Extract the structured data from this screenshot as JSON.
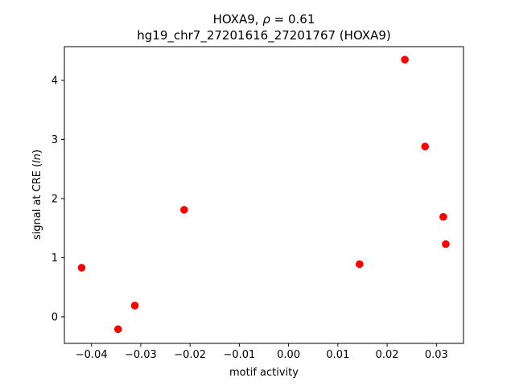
{
  "chart_data": {
    "type": "scatter",
    "title_line1_prefix": "HOXA9, ",
    "title_line1_rho": "ρ",
    "title_line1_suffix": " = 0.61",
    "title_line2": "hg19_chr7_27201616_27201767 (HOXA9)",
    "xlabel": "motif activity",
    "ylabel_prefix": "signal at CRE (",
    "ylabel_ital": "ln",
    "ylabel_suffix": ")",
    "xlim": [
      -0.0455,
      0.0355
    ],
    "ylim": [
      -0.45,
      4.57
    ],
    "x_ticks": [
      -0.04,
      -0.03,
      -0.02,
      -0.01,
      0.0,
      0.01,
      0.02,
      0.03
    ],
    "x_tick_labels": [
      "−0.04",
      "−0.03",
      "−0.02",
      "−0.01",
      "0.00",
      "0.01",
      "0.02",
      "0.03"
    ],
    "y_ticks": [
      0,
      1,
      2,
      3,
      4
    ],
    "y_tick_labels": [
      "0",
      "1",
      "2",
      "3",
      "4"
    ],
    "grid": false,
    "marker_color": "#ff0000",
    "points": [
      {
        "x": -0.042,
        "y": 0.83
      },
      {
        "x": -0.0346,
        "y": -0.21
      },
      {
        "x": -0.0312,
        "y": 0.19
      },
      {
        "x": -0.0212,
        "y": 1.81
      },
      {
        "x": 0.0144,
        "y": 0.89
      },
      {
        "x": 0.0236,
        "y": 4.35
      },
      {
        "x": 0.0277,
        "y": 2.88
      },
      {
        "x": 0.0314,
        "y": 1.69
      },
      {
        "x": 0.0319,
        "y": 1.23
      }
    ]
  }
}
